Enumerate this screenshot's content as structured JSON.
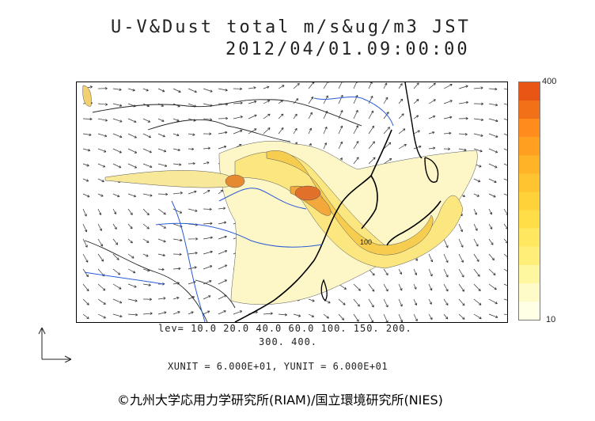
{
  "title": {
    "line1": "U-V&Dust total m/s&ug/m3 JST",
    "line2": "2012/04/01.09:00:00"
  },
  "colorbar": {
    "max_label": "400",
    "min_label": "10",
    "colors": [
      "#ffffe6",
      "#fffbc8",
      "#fff6a0",
      "#ffef78",
      "#ffe860",
      "#ffde48",
      "#ffd23a",
      "#ffc430",
      "#ffb428",
      "#ffa020",
      "#ff8c1c",
      "#f27018",
      "#e85514"
    ]
  },
  "contour_levels": {
    "line1": "lev= 10.0 20.0 40.0 60.0 100. 150. 200.",
    "line2": "300. 400."
  },
  "units_line": "XUNIT = 6.000E+01, YUNIT = 6.000E+01",
  "map_labels": {
    "contour_value": "100"
  },
  "credit": "©九州大学応用力学研究所(RIAM)/国立環境研究所(NIES)"
}
